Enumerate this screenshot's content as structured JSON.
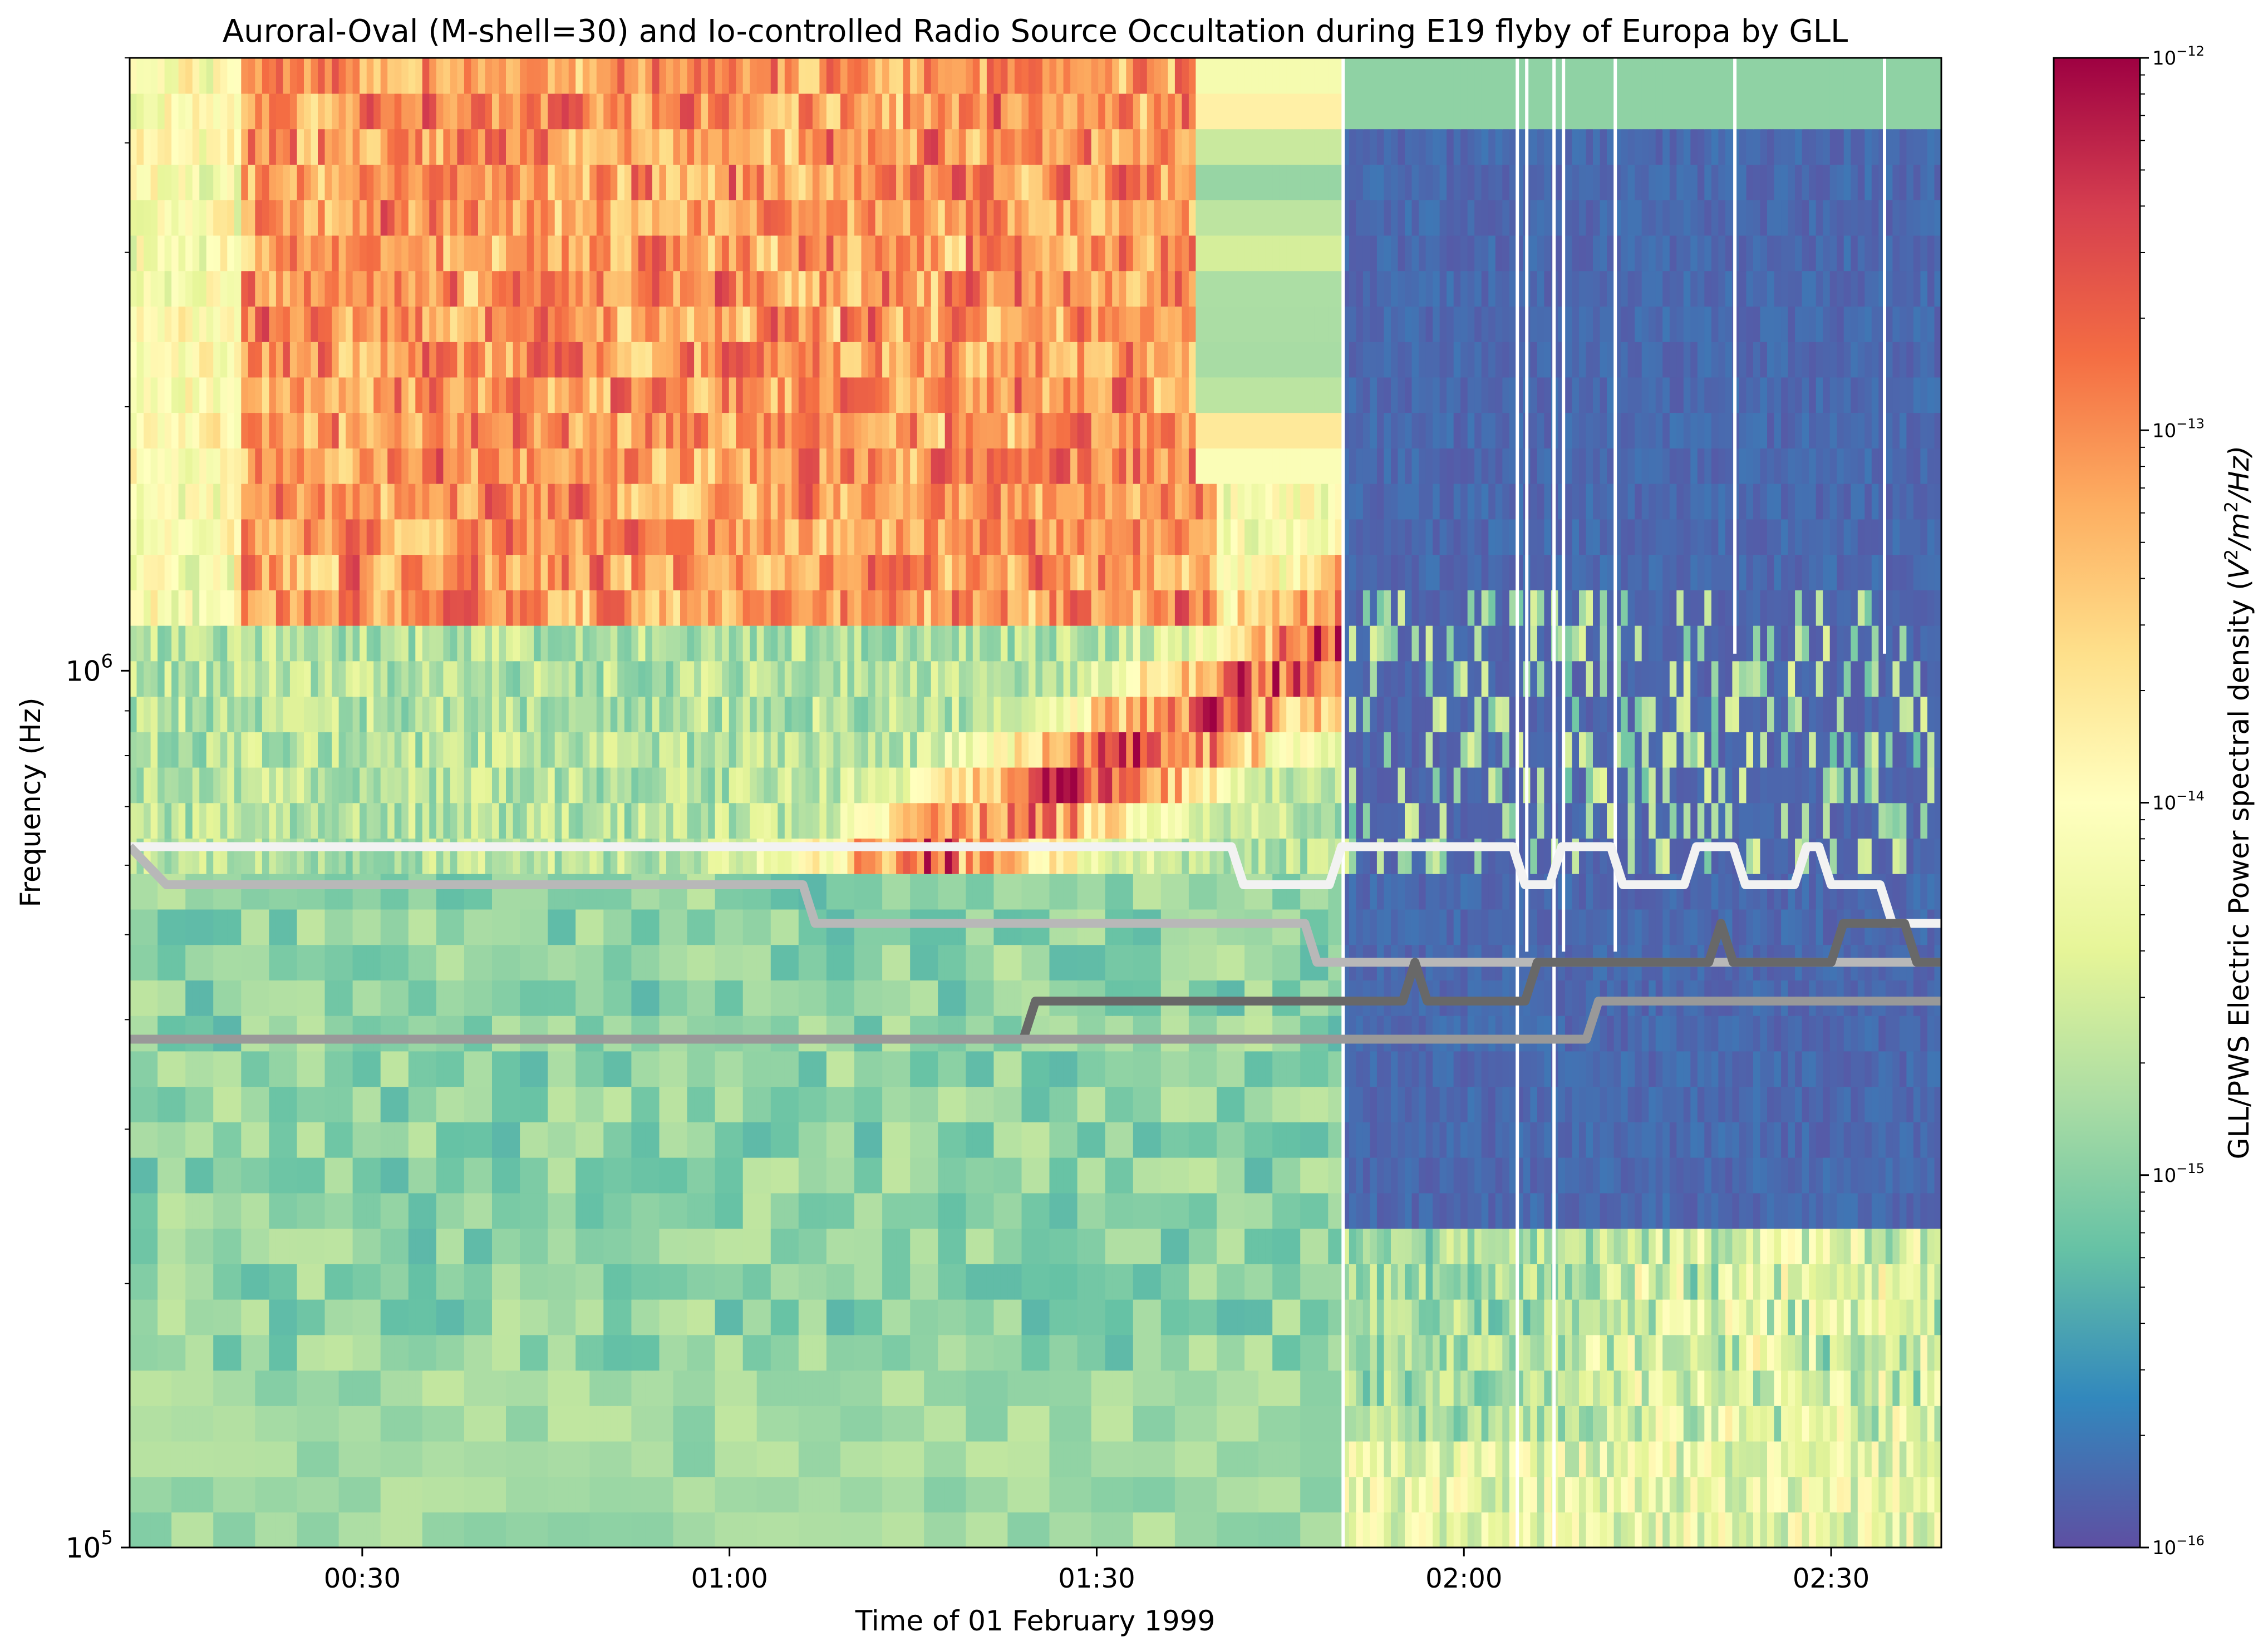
{
  "chart_data": {
    "type": "heatmap",
    "title": "Auroral-Oval (M-shell=30) and Io-controlled Radio Source Occultation during E19 flyby of Europa by GLL",
    "xlabel": "Time of 01 February 1999",
    "ylabel": "Frequency (Hz)",
    "x_range": [
      "00:11",
      "02:39"
    ],
    "y_range_hz": [
      100000,
      5000000
    ],
    "y_scale": "log",
    "x_ticks": [
      {
        "value": "00:30",
        "label": "00:30"
      },
      {
        "value": "01:00",
        "label": "01:00"
      },
      {
        "value": "01:30",
        "label": "01:30"
      },
      {
        "value": "02:00",
        "label": "02:00"
      },
      {
        "value": "02:30",
        "label": "02:30"
      }
    ],
    "y_ticks": [
      {
        "value": 100000,
        "base": "10",
        "exp": "5"
      },
      {
        "value": 1000000,
        "base": "10",
        "exp": "6"
      }
    ],
    "colorbar": {
      "label": "GLL/PWS Electric Power spectral density (V²/m²/Hz)",
      "label_prefix": "GLL/PWS Electric Power spectral density (",
      "label_unit_v": "V",
      "label_unit_m": "/m",
      "label_unit_hz": "/Hz)",
      "sup": "2",
      "scale": "log",
      "range": [
        1e-16,
        1e-12
      ],
      "colormap": "Spectral_r",
      "ticks": [
        {
          "value": 1e-12,
          "base": "10",
          "exp": "−12"
        },
        {
          "value": 1e-13,
          "base": "10",
          "exp": "−13"
        },
        {
          "value": 1e-14,
          "base": "10",
          "exp": "−14"
        },
        {
          "value": 1e-15,
          "base": "10",
          "exp": "−15"
        },
        {
          "value": 1e-16,
          "base": "10",
          "exp": "−16"
        }
      ]
    },
    "colormap_stops": [
      "#5e4fa2",
      "#3288bd",
      "#66c2a5",
      "#abdda4",
      "#e6f598",
      "#ffffbf",
      "#fee08b",
      "#fdae61",
      "#f46d43",
      "#d53e4f",
      "#9e0142"
    ],
    "background_color": "#5e4fa2",
    "data_gaps_color": "#ffffff",
    "occultation_lines": [
      {
        "color": "#f2f2f2",
        "points": [
          [
            "00:11",
            630000
          ],
          [
            "00:54",
            630000
          ],
          [
            "01:41",
            630000
          ],
          [
            "01:42",
            570000
          ],
          [
            "01:49",
            570000
          ],
          [
            "01:50",
            630000
          ],
          [
            "02:04",
            630000
          ],
          [
            "02:05",
            570000
          ],
          [
            "02:07",
            570000
          ],
          [
            "02:08",
            630000
          ],
          [
            "02:12",
            630000
          ],
          [
            "02:13",
            570000
          ],
          [
            "02:18",
            570000
          ],
          [
            "02:19",
            630000
          ],
          [
            "02:22",
            630000
          ],
          [
            "02:23",
            570000
          ],
          [
            "02:27",
            570000
          ],
          [
            "02:28",
            630000
          ],
          [
            "02:29",
            630000
          ],
          [
            "02:30",
            570000
          ],
          [
            "02:34",
            570000
          ],
          [
            "02:35",
            515000
          ],
          [
            "02:39",
            515000
          ]
        ]
      },
      {
        "color": "#b8b8b8",
        "points": [
          [
            "00:11",
            630000
          ],
          [
            "00:14",
            570000
          ],
          [
            "01:06",
            570000
          ],
          [
            "01:07",
            515000
          ],
          [
            "01:47",
            515000
          ],
          [
            "01:48",
            465000
          ],
          [
            "02:39",
            465000
          ]
        ]
      },
      {
        "color": "#686868",
        "points": [
          [
            "00:11",
            380000
          ],
          [
            "01:24",
            380000
          ],
          [
            "01:25",
            420000
          ],
          [
            "01:55",
            420000
          ],
          [
            "01:56",
            465000
          ],
          [
            "01:57",
            420000
          ],
          [
            "02:05",
            420000
          ],
          [
            "02:06",
            465000
          ],
          [
            "02:20",
            465000
          ],
          [
            "02:21",
            515000
          ],
          [
            "02:22",
            465000
          ],
          [
            "02:30",
            465000
          ],
          [
            "02:31",
            515000
          ],
          [
            "02:36",
            515000
          ],
          [
            "02:37",
            465000
          ],
          [
            "02:39",
            465000
          ]
        ]
      },
      {
        "color": "#999999",
        "points": [
          [
            "00:11",
            380000
          ],
          [
            "02:10",
            380000
          ],
          [
            "02:11",
            420000
          ],
          [
            "02:39",
            420000
          ]
        ]
      }
    ]
  }
}
